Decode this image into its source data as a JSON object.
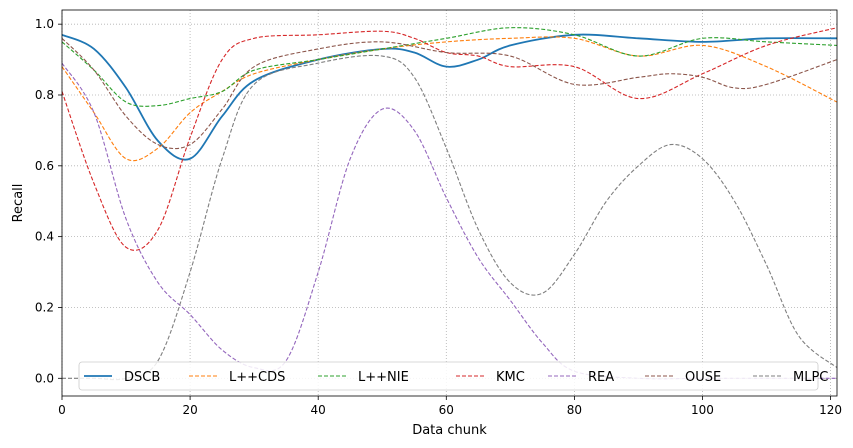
{
  "chart_data": {
    "type": "line",
    "title": "",
    "xlabel": "Data chunk",
    "ylabel": "Recall",
    "xlim": [
      0,
      121
    ],
    "ylim": [
      -0.05,
      1.04
    ],
    "xticks": [
      0,
      20,
      40,
      60,
      80,
      100,
      120
    ],
    "yticks": [
      0.0,
      0.2,
      0.4,
      0.6,
      0.8,
      1.0
    ],
    "xtick_labels": [
      "0",
      "20",
      "40",
      "60",
      "80",
      "100",
      "120"
    ],
    "ytick_labels": [
      "0.0",
      "0.2",
      "0.4",
      "0.6",
      "0.8",
      "1.0"
    ],
    "grid": true,
    "legend_position": "bottom",
    "series": [
      {
        "name": "DSCB",
        "color": "#1f77b4",
        "style": "solid",
        "x": [
          0,
          5,
          10,
          15,
          20,
          25,
          30,
          40,
          50,
          55,
          60,
          65,
          70,
          80,
          90,
          100,
          110,
          121
        ],
        "y": [
          0.97,
          0.93,
          0.82,
          0.67,
          0.62,
          0.74,
          0.84,
          0.9,
          0.93,
          0.92,
          0.88,
          0.9,
          0.94,
          0.97,
          0.96,
          0.95,
          0.96,
          0.96
        ]
      },
      {
        "name": "L++CDS",
        "color": "#ff7f0e",
        "style": "dashed",
        "x": [
          0,
          5,
          10,
          15,
          20,
          25,
          30,
          40,
          50,
          60,
          70,
          80,
          90,
          100,
          110,
          121
        ],
        "y": [
          0.88,
          0.75,
          0.62,
          0.65,
          0.75,
          0.81,
          0.86,
          0.9,
          0.93,
          0.95,
          0.96,
          0.96,
          0.91,
          0.94,
          0.88,
          0.78
        ]
      },
      {
        "name": "L++NIE",
        "color": "#2ca02c",
        "style": "dashed",
        "x": [
          0,
          5,
          10,
          15,
          20,
          25,
          30,
          40,
          50,
          60,
          70,
          80,
          90,
          100,
          110,
          121
        ],
        "y": [
          0.95,
          0.87,
          0.78,
          0.77,
          0.79,
          0.81,
          0.87,
          0.9,
          0.93,
          0.96,
          0.99,
          0.97,
          0.91,
          0.96,
          0.95,
          0.94
        ]
      },
      {
        "name": "KMC",
        "color": "#d62728",
        "style": "dashed",
        "x": [
          0,
          5,
          10,
          15,
          20,
          25,
          30,
          40,
          50,
          55,
          60,
          65,
          70,
          80,
          90,
          100,
          110,
          121
        ],
        "y": [
          0.81,
          0.55,
          0.37,
          0.42,
          0.68,
          0.9,
          0.96,
          0.97,
          0.98,
          0.96,
          0.92,
          0.91,
          0.88,
          0.88,
          0.79,
          0.86,
          0.94,
          0.99
        ]
      },
      {
        "name": "REA",
        "color": "#9467bd",
        "style": "dashed",
        "x": [
          0,
          5,
          10,
          15,
          20,
          25,
          30,
          35,
          40,
          45,
          50,
          55,
          60,
          65,
          70,
          75,
          80,
          90,
          100,
          110,
          121
        ],
        "y": [
          0.89,
          0.75,
          0.45,
          0.27,
          0.18,
          0.08,
          0.03,
          0.05,
          0.3,
          0.62,
          0.76,
          0.7,
          0.51,
          0.34,
          0.22,
          0.1,
          0.02,
          0.0,
          0.0,
          0.0,
          0.0
        ]
      },
      {
        "name": "OUSE",
        "color": "#8c564b",
        "style": "dashed",
        "x": [
          0,
          5,
          10,
          15,
          20,
          25,
          30,
          40,
          50,
          60,
          70,
          80,
          90,
          95,
          100,
          105,
          110,
          121
        ],
        "y": [
          0.96,
          0.87,
          0.74,
          0.66,
          0.66,
          0.76,
          0.88,
          0.93,
          0.95,
          0.92,
          0.91,
          0.83,
          0.85,
          0.86,
          0.85,
          0.82,
          0.83,
          0.9
        ]
      },
      {
        "name": "MLPC",
        "color": "#7f7f7f",
        "style": "dashed",
        "x": [
          0,
          5,
          10,
          15,
          20,
          25,
          30,
          40,
          50,
          55,
          60,
          65,
          70,
          75,
          80,
          85,
          90,
          95,
          100,
          105,
          110,
          115,
          121
        ],
        "y": [
          0.0,
          0.0,
          0.0,
          0.05,
          0.3,
          0.62,
          0.83,
          0.89,
          0.91,
          0.85,
          0.65,
          0.42,
          0.27,
          0.24,
          0.35,
          0.5,
          0.6,
          0.66,
          0.62,
          0.5,
          0.32,
          0.12,
          0.03
        ]
      }
    ]
  }
}
